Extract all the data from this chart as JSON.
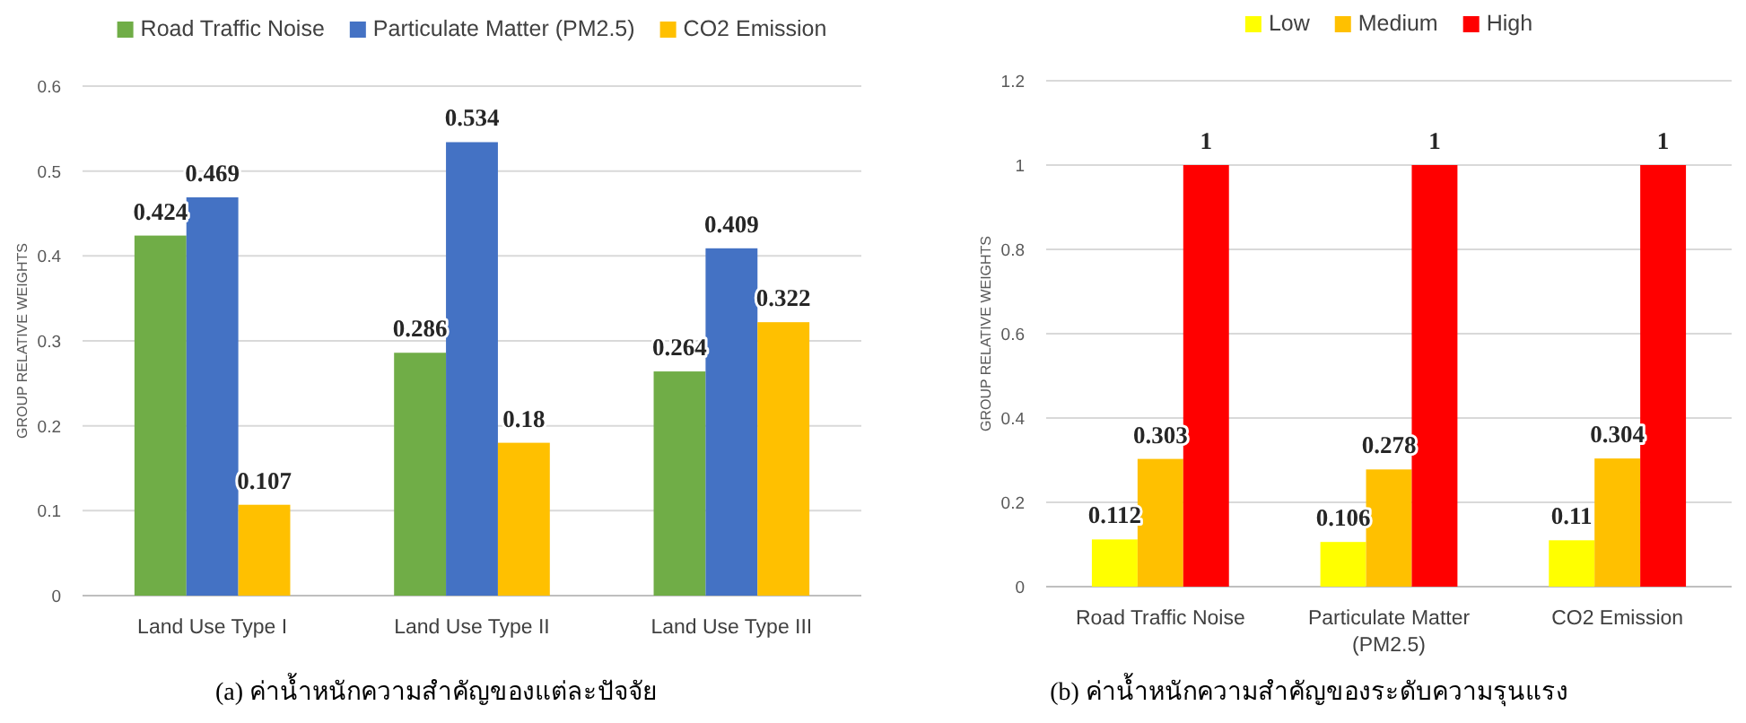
{
  "chart_data": [
    {
      "type": "bar",
      "categories": [
        "Land Use Type I",
        "Land Use Type II",
        "Land Use Type III"
      ],
      "series": [
        {
          "name": "Road Traffic Noise",
          "color": "#70ad47",
          "values": [
            0.424,
            0.286,
            0.264
          ]
        },
        {
          "name": "Particulate Matter (PM2.5)",
          "color": "#4472c4",
          "values": [
            0.469,
            0.534,
            0.409
          ]
        },
        {
          "name": "CO2 Emission",
          "color": "#ffc000",
          "values": [
            0.107,
            0.18,
            0.322
          ]
        }
      ],
      "ylabel": "GROUP RELATIVE WEIGHTS",
      "ylim": [
        0,
        0.6
      ],
      "yticks": [
        0,
        0.1,
        0.2,
        0.3,
        0.4,
        0.5,
        0.6
      ],
      "grid": "y",
      "legend": "top",
      "data_labels": true,
      "annotations": [
        "(a) ค่าน้ำหนักความสำคัญของแต่ละปัจจัย"
      ]
    },
    {
      "type": "bar",
      "categories": [
        "Road Traffic Noise",
        "Particulate Matter (PM2.5)",
        "CO2 Emission"
      ],
      "series": [
        {
          "name": "Low",
          "color": "#ffff00",
          "values": [
            0.112,
            0.106,
            0.11
          ]
        },
        {
          "name": "Medium",
          "color": "#ffc000",
          "values": [
            0.303,
            0.278,
            0.304
          ]
        },
        {
          "name": "High",
          "color": "#ff0000",
          "values": [
            1,
            1,
            1
          ]
        }
      ],
      "ylabel": "GROUP RELATIVE WEIGHTS",
      "ylim": [
        0,
        1.2
      ],
      "yticks": [
        0,
        0.2,
        0.4,
        0.6,
        0.8,
        1,
        1.2
      ],
      "grid": "y",
      "legend": "top",
      "data_labels": true,
      "annotations": [
        "(b) ค่าน้ำหนักความสำคัญของระดับความรุนแรง"
      ]
    }
  ]
}
